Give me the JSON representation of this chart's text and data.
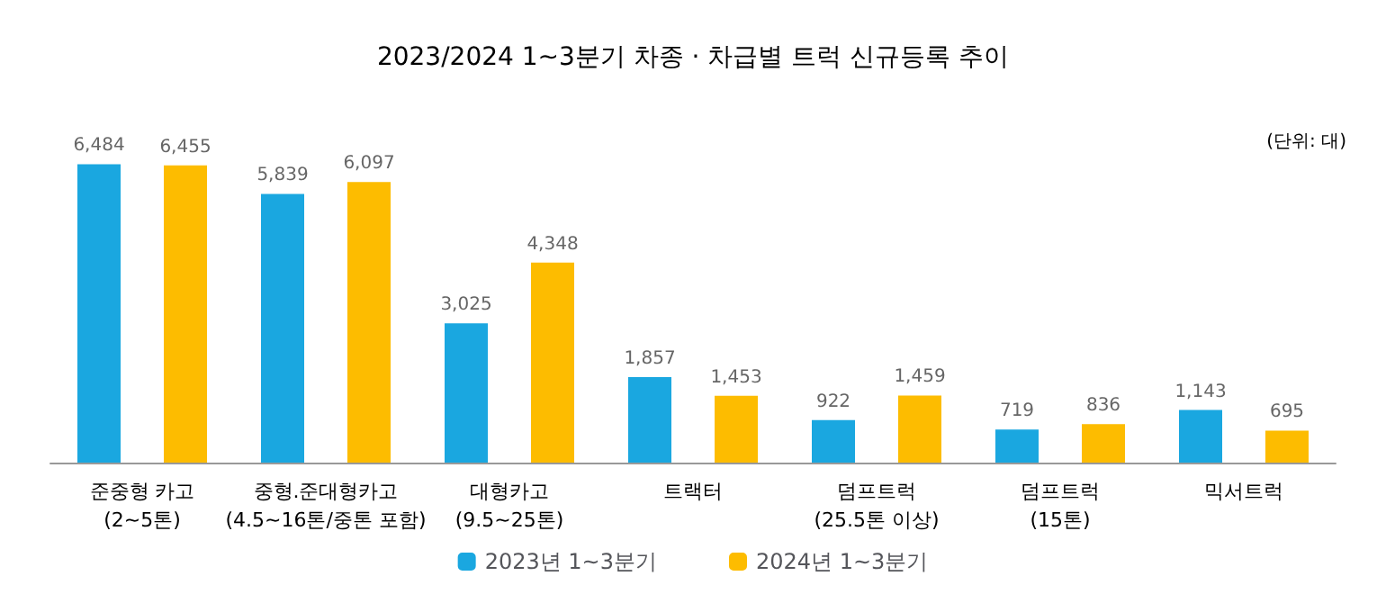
{
  "chart_data": {
    "type": "bar",
    "title": "2023/2024 1~3분기 차종 · 차급별 트럭 신규등록 추이",
    "annotations": [
      "(단위: 대)"
    ],
    "categories": [
      "준중형 카고\n(2~5톤)",
      "중형.준대형카고\n(4.5~16톤/중톤 포함)",
      "대형카고\n(9.5~25톤)",
      "트랙터",
      "덤프트럭\n(25.5톤 이상)",
      "덤프트럭\n(15톤)",
      "믹서트럭"
    ],
    "series": [
      {
        "name": "2023년 1~3분기",
        "color": "#1aa7e0",
        "values": [
          6484,
          5839,
          3025,
          1857,
          922,
          719,
          1143
        ],
        "value_labels": [
          "6,484",
          "5,839",
          "3,025",
          "1,857",
          "922",
          "719",
          "1,143"
        ]
      },
      {
        "name": "2024년 1~3분기",
        "color": "#fdbc00",
        "values": [
          6455,
          6097,
          4348,
          1453,
          1459,
          836,
          695
        ],
        "value_labels": [
          "6,455",
          "6,097",
          "4,348",
          "1,453",
          "1,459",
          "836",
          "695"
        ]
      }
    ],
    "tick_labels": "x",
    "legend": "bottom"
  }
}
